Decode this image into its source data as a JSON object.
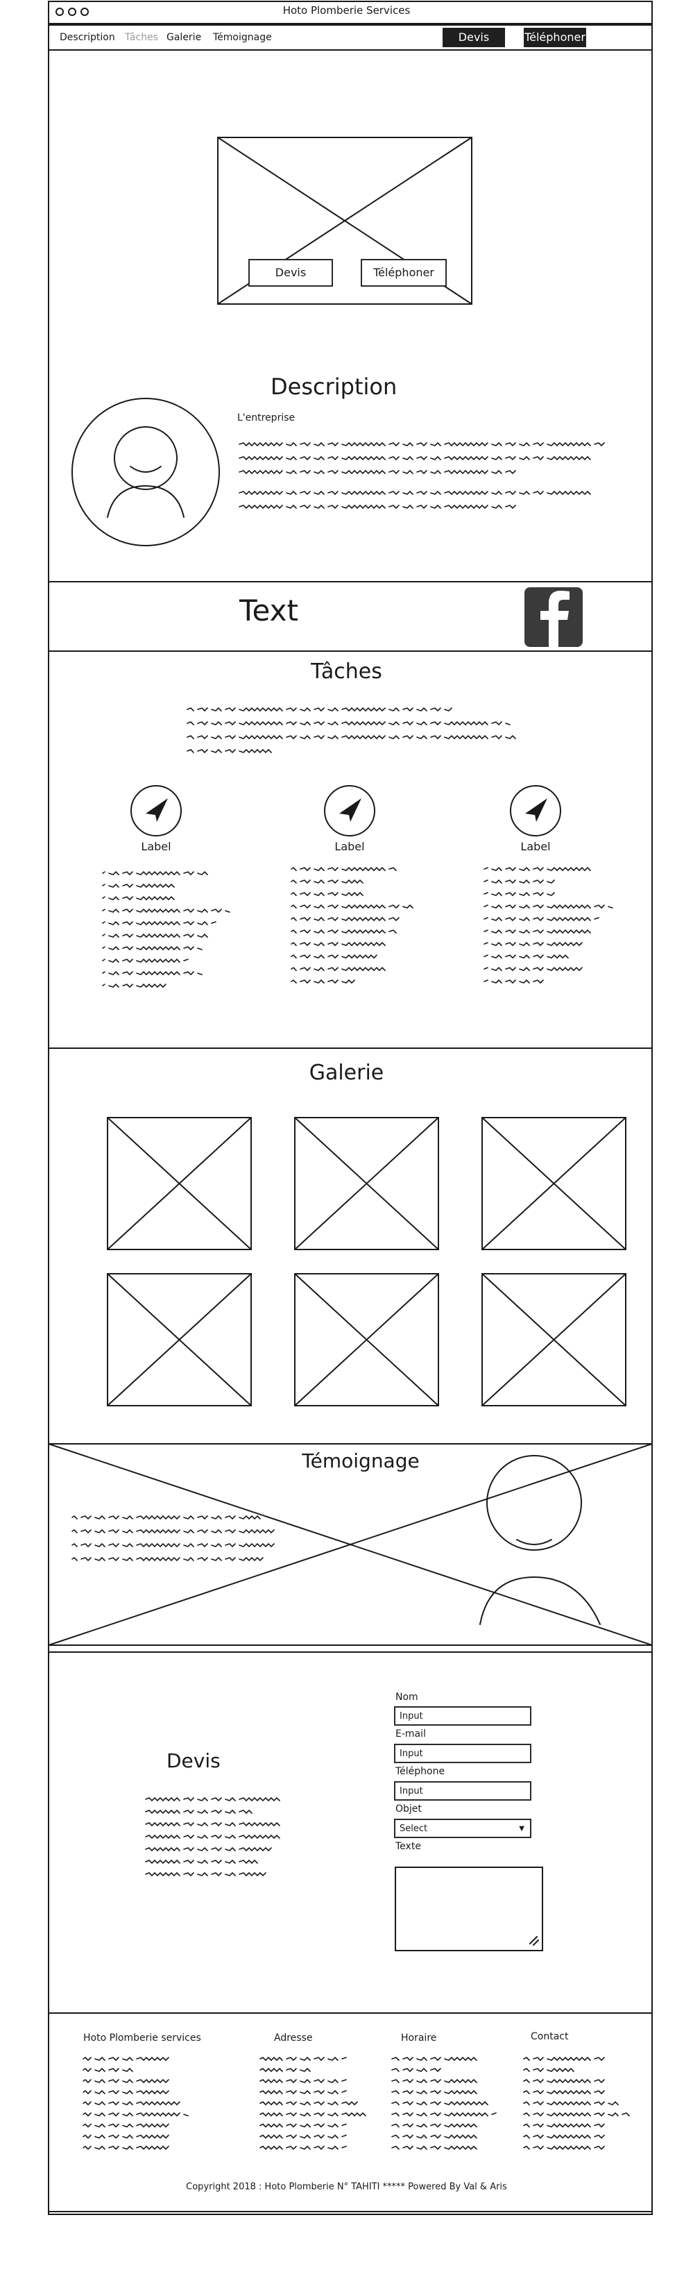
{
  "window": {
    "title": "Hoto Plomberie Services"
  },
  "nav": {
    "items": [
      "Description",
      "Tâches",
      "Galerie",
      "Témoignage"
    ],
    "devis_button": "Devis",
    "telephone_button": "Téléphoner"
  },
  "hero": {
    "devis_button": "Devis",
    "telephone_button": "Téléphoner"
  },
  "description": {
    "title": "Description",
    "subtitle": "L'entreprise"
  },
  "banner": {
    "text": "Text",
    "social_icon": "facebook-icon"
  },
  "taches": {
    "title": "Tâches",
    "items": [
      {
        "label": "Label",
        "icon": "navigation-arrow-icon"
      },
      {
        "label": "Label",
        "icon": "navigation-arrow-icon"
      },
      {
        "label": "Label",
        "icon": "navigation-arrow-icon"
      }
    ]
  },
  "galerie": {
    "title": "Galerie"
  },
  "temoignage": {
    "title": "Témoignage"
  },
  "devis": {
    "title": "Devis",
    "form": {
      "nom_label": "Nom",
      "nom_value": "Input",
      "email_label": "E-mail",
      "email_value": "Input",
      "telephone_label": "Téléphone",
      "telephone_value": "Input",
      "objet_label": "Objet",
      "objet_value": "Select",
      "texte_label": "Texte"
    }
  },
  "footer": {
    "columns": [
      "Hoto Plomberie services",
      "Adresse",
      "Horaire",
      "Contact"
    ],
    "copyright": "Copyright 2018 : Hoto Plomberie N° TAHITI ***** Powered By Val & Aris"
  },
  "colors": {
    "ink": "#1a1a1a",
    "dark_button": "#1f1f1f",
    "facebook_tile": "#3a3a3a",
    "placeholder_nav": "#9a9a9a"
  }
}
